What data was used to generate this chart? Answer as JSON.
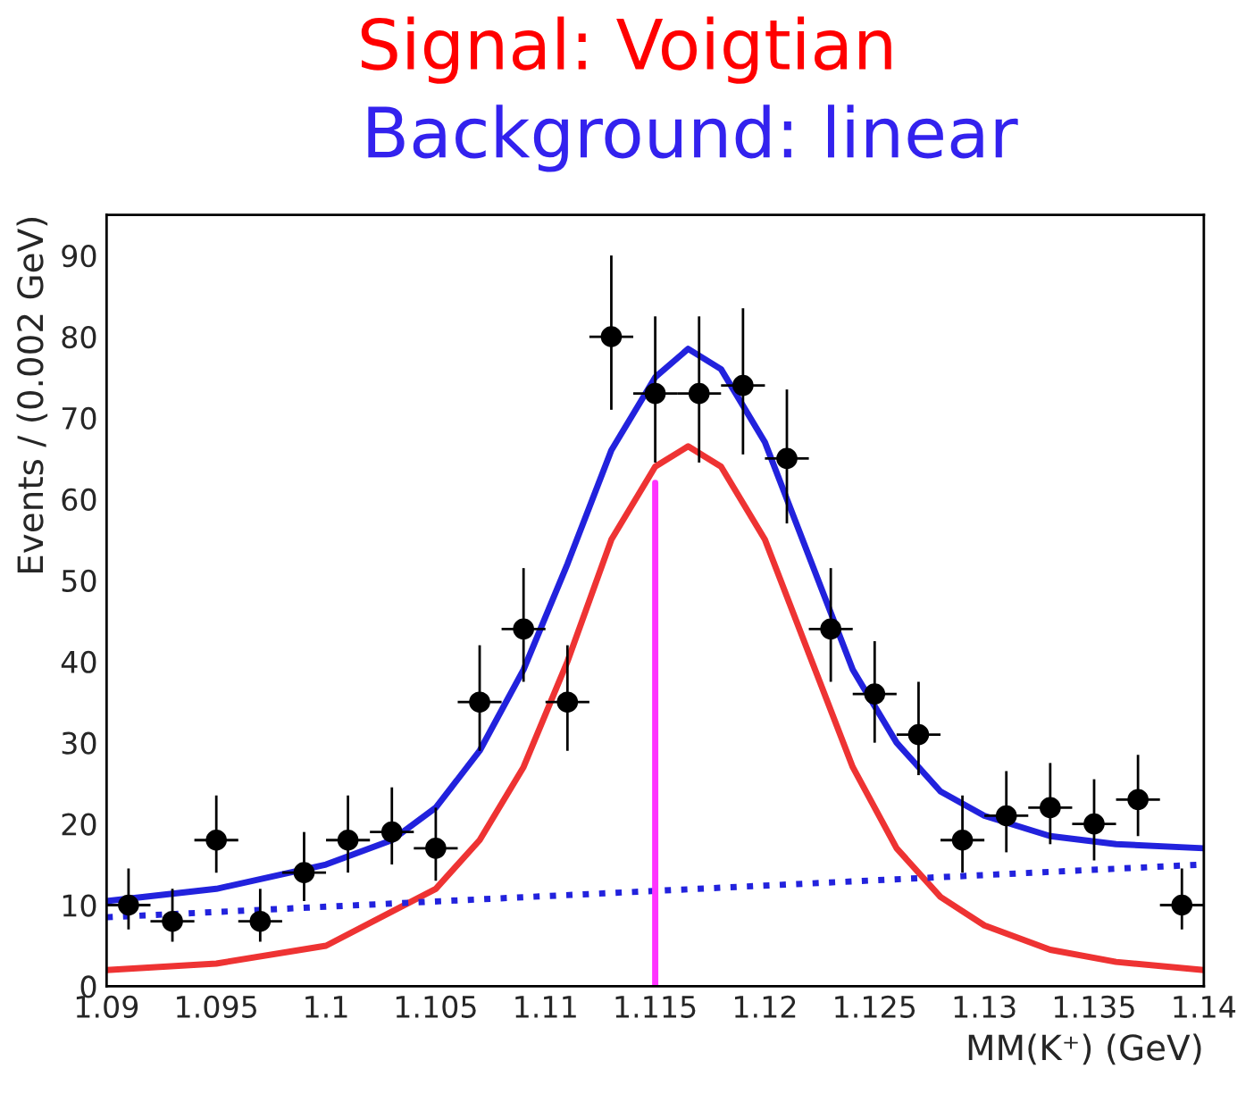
{
  "chart_data": {
    "type": "line",
    "title": "Signal: Voigtian",
    "subtitle": "Background: linear",
    "xlabel": "MM(K⁺) (GeV)",
    "ylabel": "Events / (0.002 GeV)",
    "xlim": [
      1.09,
      1.14
    ],
    "xticks": [
      {
        "value": 1.09,
        "label": "1.09"
      },
      {
        "value": 1.095,
        "label": "1.095"
      },
      {
        "value": 1.1,
        "label": "1.1"
      },
      {
        "value": 1.105,
        "label": "1.105"
      },
      {
        "value": 1.11,
        "label": "1.11"
      },
      {
        "value": 1.115,
        "label": "1.115"
      },
      {
        "value": 1.12,
        "label": "1.12"
      },
      {
        "value": 1.125,
        "label": "1.125"
      },
      {
        "value": 1.13,
        "label": "1.13"
      },
      {
        "value": 1.135,
        "label": "1.135"
      },
      {
        "value": 1.14,
        "label": "1.14"
      }
    ],
    "ylim": [
      0,
      95
    ],
    "yticks": [
      0,
      10,
      20,
      30,
      40,
      50,
      60,
      70,
      80,
      90
    ],
    "grid": false,
    "legend": false,
    "series": [
      {
        "type": "line",
        "color": "#ee3333",
        "line_style": "solid",
        "x": [
          1.09,
          1.095,
          1.1,
          1.105,
          1.107,
          1.109,
          1.111,
          1.113,
          1.115,
          1.1165,
          1.118,
          1.12,
          1.122,
          1.124,
          1.126,
          1.128,
          1.13,
          1.133,
          1.136,
          1.14
        ],
        "values": [
          2,
          2.8,
          5,
          12,
          18,
          27,
          40,
          55,
          64,
          66.5,
          64,
          55,
          41,
          27,
          17,
          11,
          7.5,
          4.5,
          3,
          2
        ]
      },
      {
        "type": "line",
        "color": "#2222dd",
        "line_style": "solid",
        "x": [
          1.09,
          1.095,
          1.1,
          1.103,
          1.105,
          1.107,
          1.109,
          1.111,
          1.113,
          1.115,
          1.1165,
          1.118,
          1.12,
          1.122,
          1.124,
          1.126,
          1.128,
          1.13,
          1.133,
          1.136,
          1.14
        ],
        "values": [
          10.5,
          12,
          15,
          18,
          22,
          29,
          39,
          52,
          66,
          75,
          78.5,
          76,
          67,
          53,
          39,
          30,
          24,
          21,
          18.5,
          17.5,
          17
        ]
      },
      {
        "type": "line",
        "color": "#2222dd",
        "line_style": "dotted",
        "x": [
          1.09,
          1.14
        ],
        "values": [
          8.5,
          15
        ]
      },
      {
        "type": "line",
        "color": "#ff33ff",
        "line_style": "solid",
        "x": [
          1.115,
          1.115
        ],
        "values": [
          0,
          62
        ]
      },
      {
        "type": "scatter",
        "color": "#000000",
        "marker": "circle",
        "x": [
          1.091,
          1.093,
          1.095,
          1.097,
          1.099,
          1.101,
          1.103,
          1.105,
          1.107,
          1.109,
          1.111,
          1.113,
          1.115,
          1.117,
          1.119,
          1.121,
          1.123,
          1.125,
          1.127,
          1.129,
          1.131,
          1.133,
          1.135,
          1.137,
          1.139
        ],
        "values": [
          10,
          8,
          18,
          8,
          14,
          18,
          19,
          17,
          35,
          44,
          35,
          80,
          73,
          73,
          74,
          65,
          44,
          36,
          31,
          18,
          21,
          22,
          20,
          23,
          10
        ],
        "errors": [
          [
            7,
            14.5
          ],
          [
            5.5,
            12
          ],
          [
            14,
            23.5
          ],
          [
            5.5,
            12
          ],
          [
            10.5,
            19
          ],
          [
            14,
            23.5
          ],
          [
            15,
            24.5
          ],
          [
            13,
            22
          ],
          [
            29,
            42
          ],
          [
            37.5,
            51.5
          ],
          [
            29,
            42
          ],
          [
            71,
            90
          ],
          [
            64.5,
            82.5
          ],
          [
            64.5,
            82.5
          ],
          [
            65.5,
            83.5
          ],
          [
            57,
            73.5
          ],
          [
            37.5,
            51.5
          ],
          [
            30,
            42.5
          ],
          [
            26,
            37.5
          ],
          [
            14,
            23.5
          ],
          [
            16.5,
            26.5
          ],
          [
            17.5,
            27.5
          ],
          [
            15.5,
            25.5
          ],
          [
            18.5,
            28.5
          ],
          [
            7,
            14.5
          ]
        ],
        "xerrors": [
          0.001,
          0.001,
          0.001,
          0.001,
          0.001,
          0.001,
          0.001,
          0.001,
          0.001,
          0.001,
          0.001,
          0.001,
          0.001,
          0.001,
          0.001,
          0.001,
          0.001,
          0.001,
          0.001,
          0.001,
          0.001,
          0.001,
          0.001,
          0.001,
          0.001
        ]
      }
    ]
  }
}
